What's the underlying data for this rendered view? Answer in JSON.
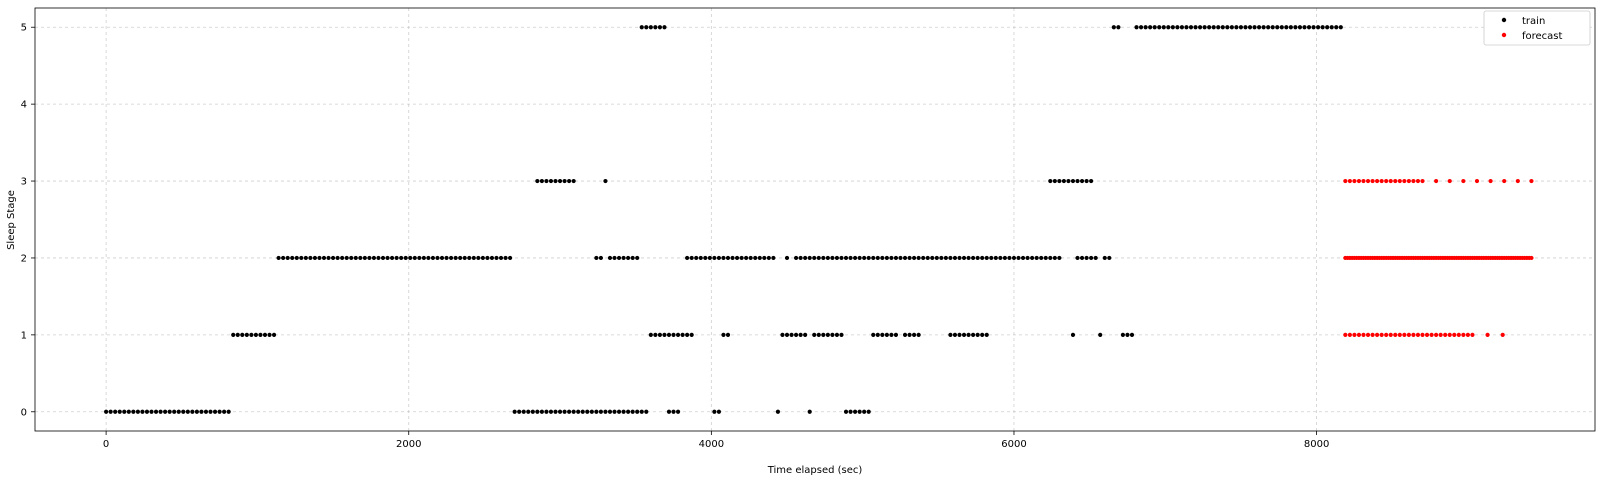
{
  "chart_data": {
    "type": "scatter",
    "title": "",
    "xlabel": "Time elapsed (sec)",
    "ylabel": "Sleep Stage",
    "xlim": [
      -470,
      9840
    ],
    "ylim": [
      -0.25,
      5.25
    ],
    "xticks": [
      0,
      2000,
      4000,
      6000,
      8000
    ],
    "yticks": [
      0,
      1,
      2,
      3,
      4,
      5
    ],
    "grid": true,
    "legend_position": "top-right",
    "series": [
      {
        "name": "train",
        "color": "#000000",
        "segments": [
          {
            "y": 0,
            "x_start": 0,
            "x_end": 810,
            "step": 30
          },
          {
            "y": 1,
            "x_start": 840,
            "x_end": 1110,
            "step": 30
          },
          {
            "y": 2,
            "x_start": 1140,
            "x_end": 2670,
            "step": 30
          },
          {
            "y": 0,
            "x_start": 2700,
            "x_end": 3570,
            "step": 30
          },
          {
            "y": 3,
            "x_start": 2850,
            "x_end": 3090,
            "step": 30
          },
          {
            "y": 3,
            "x_start": 3300,
            "x_end": 3300,
            "step": 30
          },
          {
            "y": 2,
            "x_start": 3240,
            "x_end": 3270,
            "step": 30
          },
          {
            "y": 2,
            "x_start": 3330,
            "x_end": 3510,
            "step": 30
          },
          {
            "y": 5,
            "x_start": 3540,
            "x_end": 3690,
            "step": 30
          },
          {
            "y": 1,
            "x_start": 3600,
            "x_end": 3870,
            "step": 30
          },
          {
            "y": 0,
            "x_start": 3720,
            "x_end": 3780,
            "step": 30
          },
          {
            "y": 2,
            "x_start": 3840,
            "x_end": 4410,
            "step": 30
          },
          {
            "y": 0,
            "x_start": 4020,
            "x_end": 4050,
            "step": 30
          },
          {
            "y": 1,
            "x_start": 4080,
            "x_end": 4110,
            "step": 30
          },
          {
            "y": 0,
            "x_start": 4440,
            "x_end": 4440,
            "step": 30
          },
          {
            "y": 1,
            "x_start": 4470,
            "x_end": 4620,
            "step": 30
          },
          {
            "y": 2,
            "x_start": 4500,
            "x_end": 4500,
            "step": 30
          },
          {
            "y": 2,
            "x_start": 4560,
            "x_end": 6300,
            "step": 30
          },
          {
            "y": 0,
            "x_start": 4650,
            "x_end": 4650,
            "step": 30
          },
          {
            "y": 1,
            "x_start": 4680,
            "x_end": 4860,
            "step": 30
          },
          {
            "y": 0,
            "x_start": 4890,
            "x_end": 5040,
            "step": 30
          },
          {
            "y": 1,
            "x_start": 5070,
            "x_end": 5220,
            "step": 30
          },
          {
            "y": 1,
            "x_start": 5280,
            "x_end": 5370,
            "step": 30
          },
          {
            "y": 1,
            "x_start": 5580,
            "x_end": 5820,
            "step": 30
          },
          {
            "y": 3,
            "x_start": 6240,
            "x_end": 6510,
            "step": 30
          },
          {
            "y": 1,
            "x_start": 6390,
            "x_end": 6390,
            "step": 30
          },
          {
            "y": 2,
            "x_start": 6420,
            "x_end": 6540,
            "step": 30
          },
          {
            "y": 1,
            "x_start": 6570,
            "x_end": 6570,
            "step": 30
          },
          {
            "y": 2,
            "x_start": 6600,
            "x_end": 6630,
            "step": 30
          },
          {
            "y": 5,
            "x_start": 6660,
            "x_end": 6690,
            "step": 30
          },
          {
            "y": 1,
            "x_start": 6720,
            "x_end": 6780,
            "step": 30
          },
          {
            "y": 5,
            "x_start": 6810,
            "x_end": 8160,
            "step": 30
          }
        ]
      },
      {
        "name": "forecast",
        "color": "#ff0000",
        "segments": [
          {
            "y": 2,
            "x_start": 8190,
            "x_end": 9420,
            "step": 15
          },
          {
            "y": 1,
            "x_start": 8190,
            "x_end": 9000,
            "step": 30
          },
          {
            "y": 1,
            "x_start": 9030,
            "x_end": 9240,
            "step": 100
          },
          {
            "y": 3,
            "x_start": 8190,
            "x_end": 8700,
            "step": 30
          },
          {
            "y": 3,
            "x_start": 8790,
            "x_end": 9420,
            "step": 90
          }
        ]
      }
    ]
  }
}
